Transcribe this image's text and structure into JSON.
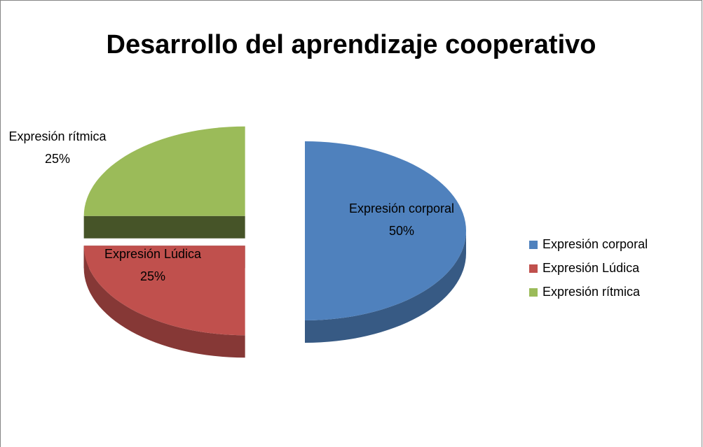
{
  "chart_data": {
    "type": "pie3d",
    "title": "Desarrollo del aprendizaje cooperativo",
    "categories": [
      "Expresión  corporal",
      "Expresión Lúdica",
      "Expresión rítmica"
    ],
    "values": [
      50,
      25,
      25
    ],
    "value_labels": [
      "50%",
      "25%",
      "25%"
    ],
    "colors": [
      "#4f81bd",
      "#c0504d",
      "#9bbb59"
    ],
    "legend": "right"
  }
}
